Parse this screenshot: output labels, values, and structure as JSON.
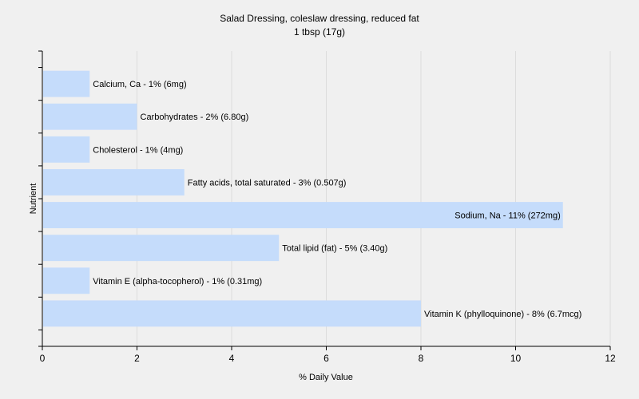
{
  "chart_data": {
    "type": "bar",
    "orientation": "horizontal",
    "title": "Salad Dressing, coleslaw dressing, reduced fat",
    "subtitle": "1 tbsp (17g)",
    "xlabel": "% Daily Value",
    "ylabel": "Nutrient",
    "xlim": [
      0,
      12
    ],
    "xticks": [
      0,
      2,
      4,
      6,
      8,
      10,
      12
    ],
    "grid": true,
    "bar_color": "#c5dcfb",
    "categories": [
      "Calcium, Ca",
      "Carbohydrates",
      "Cholesterol",
      "Fatty acids, total saturated",
      "Sodium, Na",
      "Total lipid (fat)",
      "Vitamin E (alpha-tocopherol)",
      "Vitamin K (phylloquinone)"
    ],
    "values": [
      1,
      2,
      1,
      3,
      11,
      5,
      1,
      8
    ],
    "labels": [
      "Calcium, Ca - 1% (6mg)",
      "Carbohydrates - 2% (6.80g)",
      "Cholesterol - 1% (4mg)",
      "Fatty acids, total saturated - 3% (0.507g)",
      "Sodium, Na - 11% (272mg)",
      "Total lipid (fat) - 5% (3.40g)",
      "Vitamin E (alpha-tocopherol) - 1% (0.31mg)",
      "Vitamin K (phylloquinone) - 8% (6.7mcg)"
    ]
  }
}
